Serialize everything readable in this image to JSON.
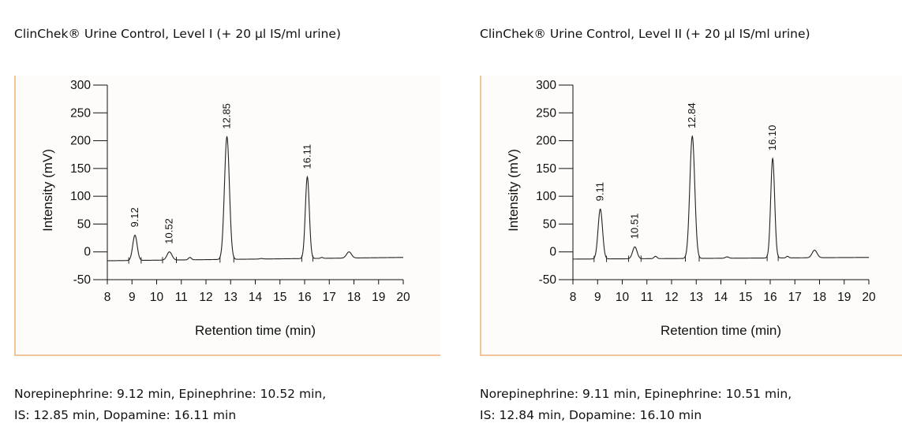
{
  "panels": [
    {
      "title": "ClinChek® Urine Control, Level I (+ 20 µl IS/ml urine)",
      "caption_line1": "Norepinephrine: 9.12 min, Epinephrine: 10.52 min,",
      "caption_line2": "IS: 12.85 min, Dopamine: 16.11 min"
    },
    {
      "title": "ClinChek® Urine Control, Level II (+ 20 µl IS/ml urine)",
      "caption_line1": "Norepinephrine: 9.11 min, Epinephrine: 10.51 min,",
      "caption_line2": "IS: 12.84 min, Dopamine: 16.10 min"
    }
  ],
  "chart_data": [
    {
      "type": "line",
      "title": "ClinChek® Urine Control, Level I (+ 20 µl IS/ml urine)",
      "xlabel": "Retention time (min)",
      "ylabel": "Intensity (mV)",
      "xlim": [
        8,
        20
      ],
      "ylim": [
        -50,
        300
      ],
      "x_ticks": [
        "8",
        "9",
        "10",
        "11",
        "12",
        "13",
        "14",
        "15",
        "16",
        "17",
        "18",
        "19",
        "20"
      ],
      "y_ticks": [
        "300",
        "250",
        "200",
        "150",
        "100",
        "50",
        "0",
        "-50"
      ],
      "baseline": [
        [
          8.0,
          -16
        ],
        [
          20.0,
          -10
        ]
      ],
      "peaks": [
        {
          "x": 9.12,
          "y": 30,
          "width": 0.09,
          "label": "9.12"
        },
        {
          "x": 10.52,
          "y": 0,
          "width": 0.1,
          "label": "10.52"
        },
        {
          "x": 11.35,
          "y": -10,
          "width": 0.06
        },
        {
          "x": 12.85,
          "y": 207,
          "width": 0.1,
          "label": "12.85"
        },
        {
          "x": 14.25,
          "y": -12,
          "width": 0.07
        },
        {
          "x": 16.11,
          "y": 135,
          "width": 0.08,
          "label": "16.11"
        },
        {
          "x": 16.7,
          "y": -10,
          "width": 0.05
        },
        {
          "x": 17.8,
          "y": 0,
          "width": 0.1
        }
      ]
    },
    {
      "type": "line",
      "title": "ClinChek® Urine Control, Level II (+ 20 µl IS/ml urine)",
      "xlabel": "Retention time (min)",
      "ylabel": "Intensity (mV)",
      "xlim": [
        8,
        20
      ],
      "ylim": [
        -50,
        300
      ],
      "x_ticks": [
        "8",
        "9",
        "10",
        "11",
        "12",
        "13",
        "14",
        "15",
        "16",
        "17",
        "18",
        "19",
        "20"
      ],
      "y_ticks": [
        "300",
        "250",
        "200",
        "150",
        "100",
        "50",
        "0",
        "-50"
      ],
      "baseline": [
        [
          8.0,
          -13
        ],
        [
          20.0,
          -10
        ]
      ],
      "peaks": [
        {
          "x": 9.11,
          "y": 77,
          "width": 0.09,
          "label": "9.11"
        },
        {
          "x": 10.51,
          "y": 9,
          "width": 0.09,
          "label": "10.51"
        },
        {
          "x": 11.35,
          "y": -8,
          "width": 0.06
        },
        {
          "x": 12.84,
          "y": 208,
          "width": 0.1,
          "label": "12.84"
        },
        {
          "x": 14.25,
          "y": -9,
          "width": 0.07
        },
        {
          "x": 16.1,
          "y": 168,
          "width": 0.08,
          "label": "16.10"
        },
        {
          "x": 16.7,
          "y": -8,
          "width": 0.05
        },
        {
          "x": 17.8,
          "y": 3,
          "width": 0.1
        }
      ]
    }
  ]
}
